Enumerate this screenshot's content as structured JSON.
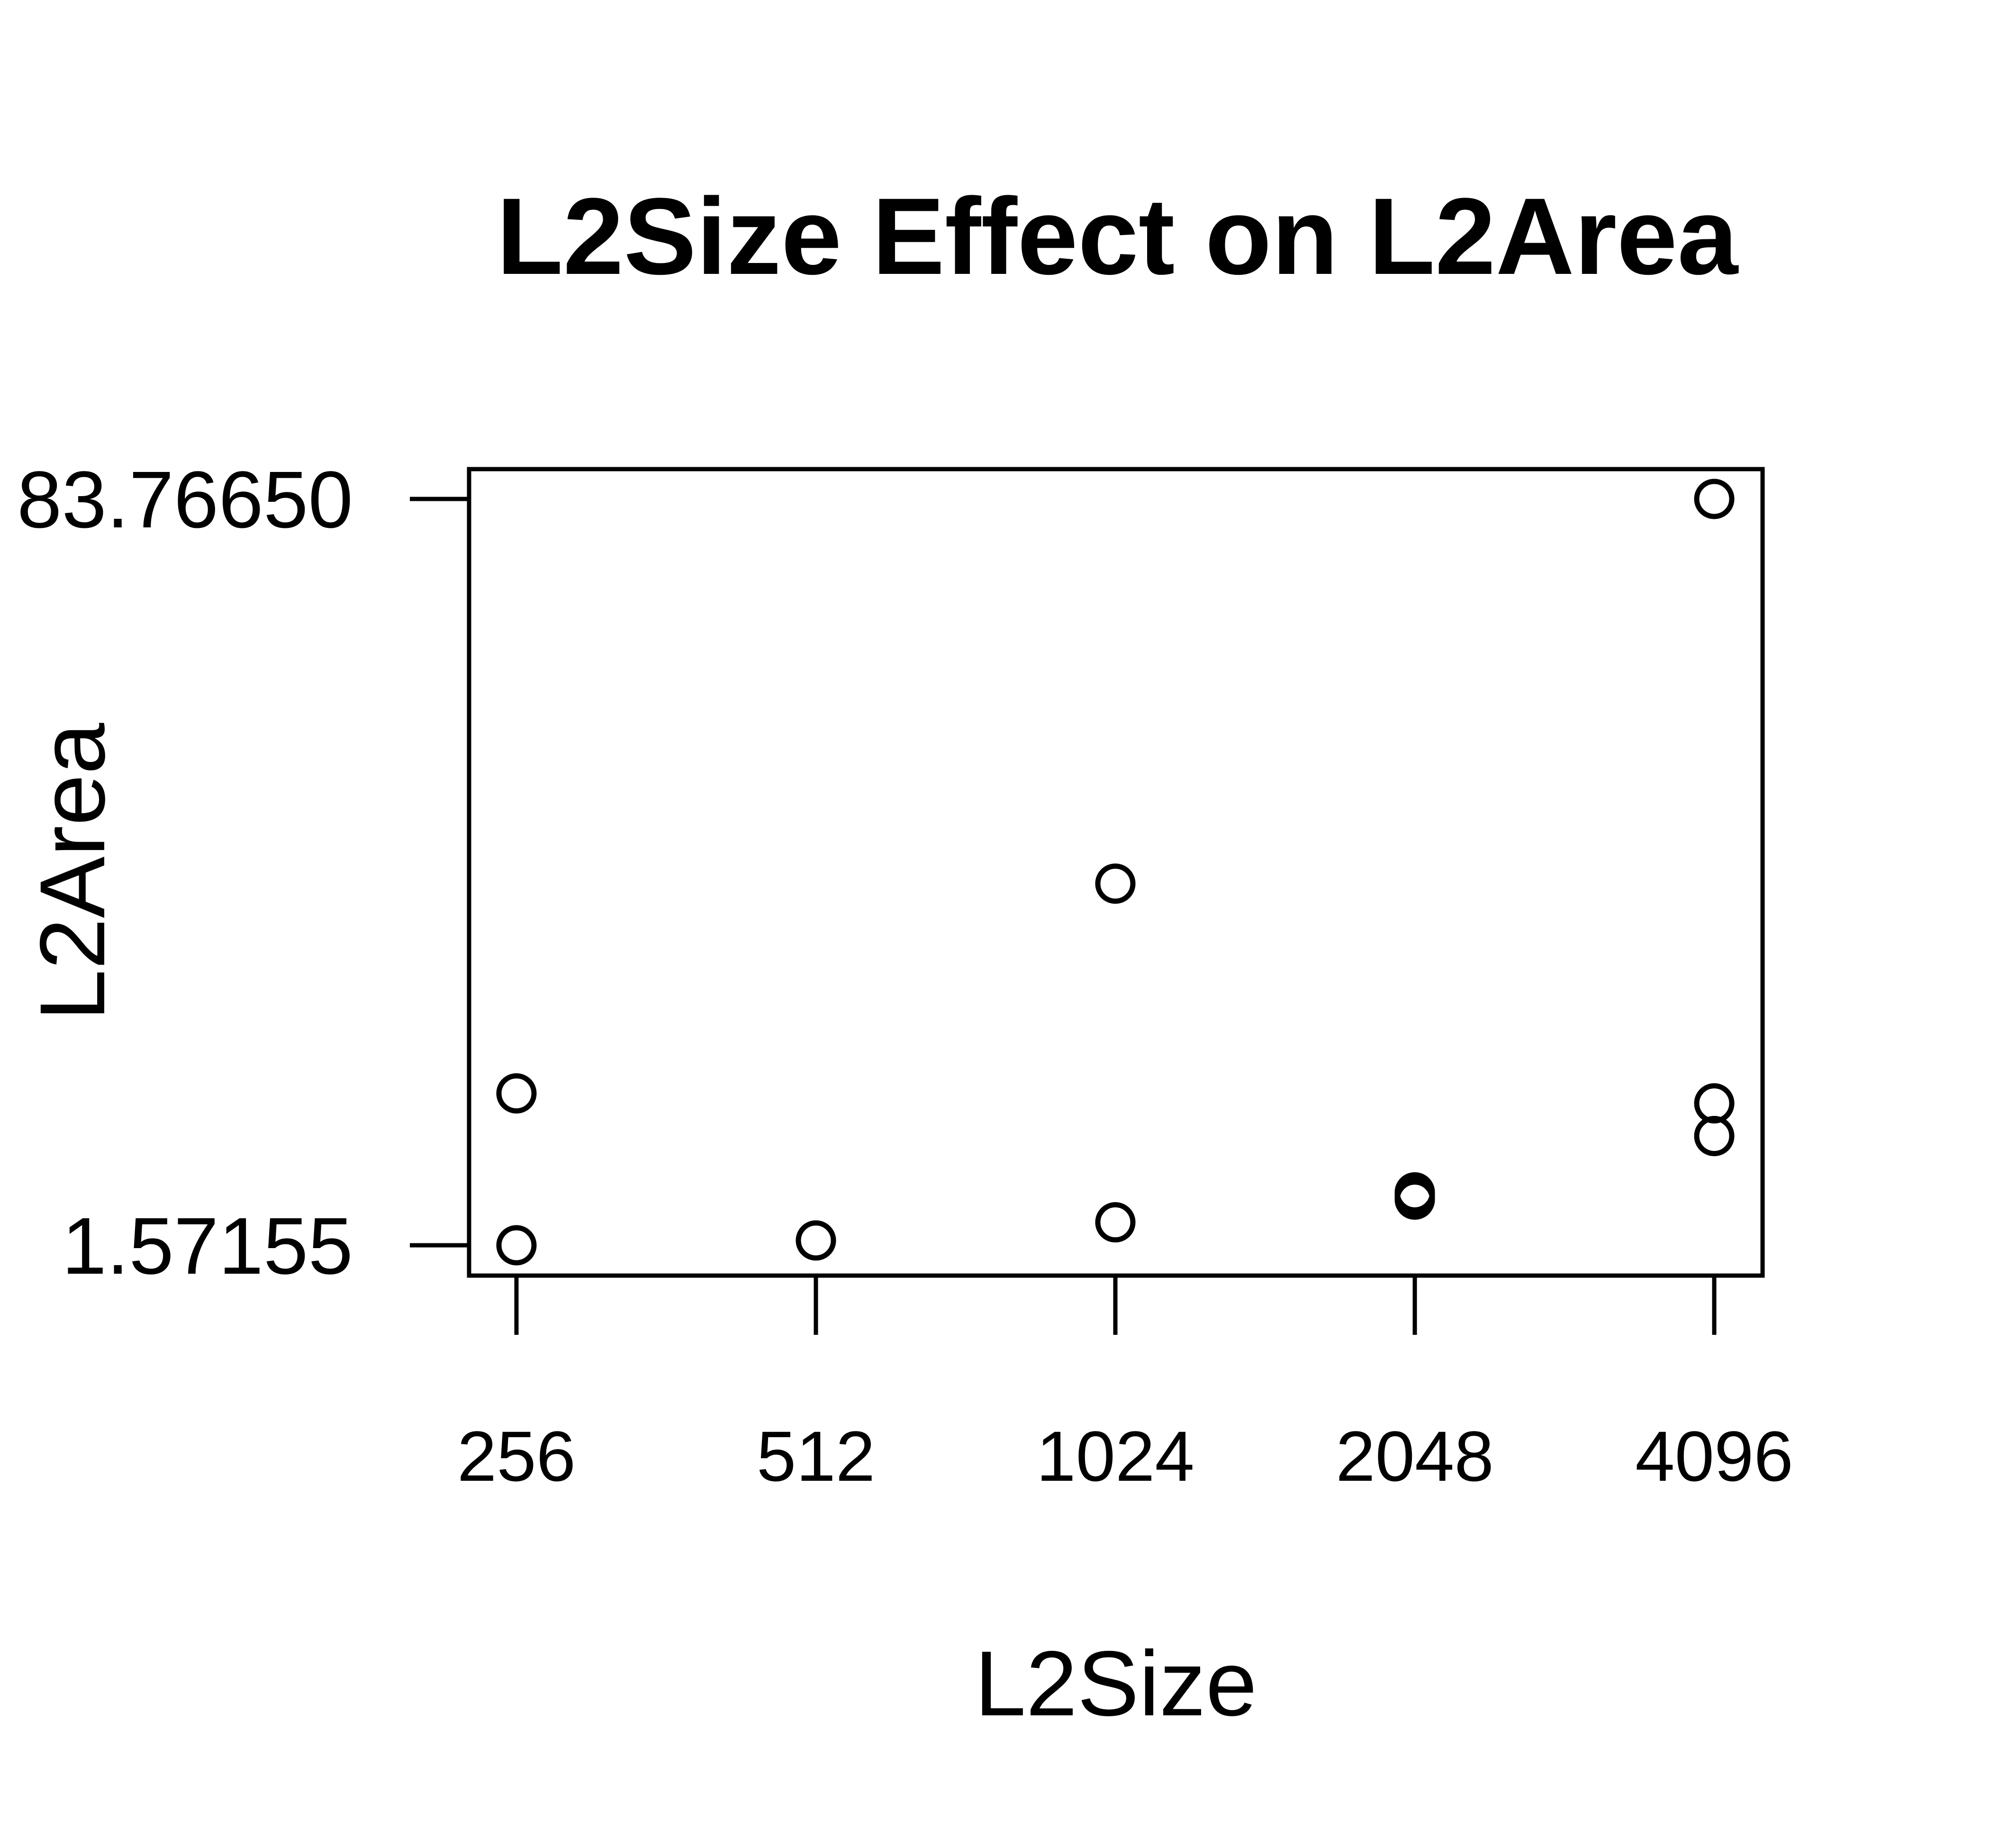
{
  "chart_data": {
    "type": "scatter",
    "title": "L2Size Effect on L2Area",
    "xlabel": "L2Size",
    "ylabel": "L2Area",
    "x_ticks": [
      "256",
      "512",
      "1024",
      "2048",
      "4096"
    ],
    "y_ticks": [
      "1.57155",
      "83.76650"
    ],
    "ylim": [
      1.57155,
      83.7665
    ],
    "grid": false,
    "legend": "none",
    "point_color": "#000000",
    "points": [
      {
        "x": "256",
        "y": 18.3
      },
      {
        "x": "256",
        "y": 1.57155
      },
      {
        "x": "512",
        "y": 2.1
      },
      {
        "x": "1024",
        "y": 41.4
      },
      {
        "x": "1024",
        "y": 4.1
      },
      {
        "x": "2048",
        "y": 7.4
      },
      {
        "x": "2048",
        "y": 7.0
      },
      {
        "x": "2048",
        "y": 6.6
      },
      {
        "x": "4096",
        "y": 83.7665
      },
      {
        "x": "4096",
        "y": 17.2
      },
      {
        "x": "4096",
        "y": 13.6
      }
    ]
  }
}
